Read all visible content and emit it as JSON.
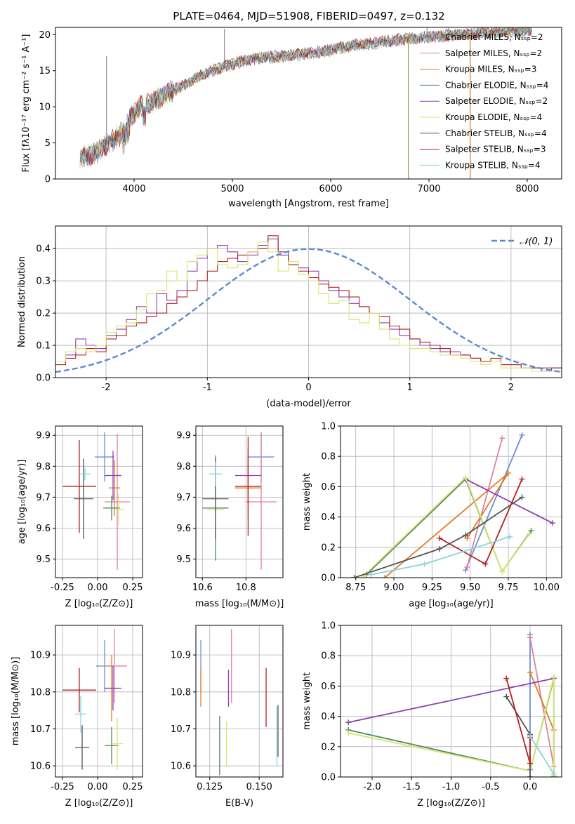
{
  "chart_data": [
    {
      "type": "line",
      "title": "PLATE=0464, MJD=51908, FIBERID=0497, z=0.132",
      "xlabel": "wavelength [Angstrom, rest frame]",
      "ylabel": "Flux [fλ10⁻¹⁷ erg cm⁻² s⁻¹ A⁻¹]",
      "xlim": [
        3200,
        8350
      ],
      "ylim": [
        0,
        21
      ],
      "xticks": [
        4000,
        5000,
        6000,
        7000,
        8000
      ],
      "yticks": [
        0,
        5,
        10,
        15,
        20
      ],
      "legend_position": "top-right",
      "series": [
        {
          "name": "Chabrier MILES, Nₛₛₚ=2",
          "color": "#6b8fd6"
        },
        {
          "name": "Salpeter MILES, Nₛₛₚ=2",
          "color": "#e0829e"
        },
        {
          "name": "Kroupa MILES, Nₛₛₚ=3",
          "color": "#e07b28"
        },
        {
          "name": "Chabrier ELODIE, Nₛₛₚ=4",
          "color": "#4f8a5e"
        },
        {
          "name": "Salpeter ELODIE, Nₛₛₚ=2",
          "color": "#8e3fb3"
        },
        {
          "name": "Kroupa ELODIE, Nₛₛₚ=4",
          "color": "#d5e76e"
        },
        {
          "name": "Chabrier STELIB, Nₛₛₚ=4",
          "color": "#555555"
        },
        {
          "name": "Salpeter STELIB, Nₛₛₚ=3",
          "color": "#b22222"
        },
        {
          "name": "Kroupa STELIB, Nₛₛₚ=4",
          "color": "#86d4e0"
        }
      ],
      "spectrum_knots": {
        "x": [
          3450,
          3600,
          3700,
          3850,
          3950,
          4050,
          4150,
          4300,
          4500,
          4700,
          4900,
          5100,
          5300,
          5500,
          5700,
          5900,
          6100,
          6300,
          6500,
          6700,
          6900,
          7100,
          7300,
          7500,
          7700,
          7900,
          8050
        ],
        "y": [
          3.0,
          3.5,
          4.5,
          6.0,
          8.5,
          10.0,
          10.5,
          11.5,
          13.0,
          14.5,
          15.5,
          16.3,
          16.8,
          17.0,
          17.3,
          17.6,
          18.2,
          18.6,
          18.9,
          19.3,
          19.5,
          19.8,
          20.0,
          20.2,
          20.4,
          20.5,
          20.6
        ]
      },
      "spikes": [
        {
          "x": 3720,
          "y": 17.0,
          "color": "#555555"
        },
        {
          "x": 4920,
          "y": 20.8,
          "color": "#555555"
        },
        {
          "x": 6980,
          "y": 21.0,
          "color": "#555555"
        },
        {
          "x": 7200,
          "y": 20.9,
          "color": "#555555"
        }
      ],
      "dropouts": [
        {
          "x": 6790,
          "color": "#9e9c3a"
        },
        {
          "x": 7420,
          "color": "#e07b28"
        }
      ]
    },
    {
      "type": "histogram",
      "xlabel": "(data-model)/error",
      "ylabel": "Normed distribution",
      "xlim": [
        -2.5,
        2.5
      ],
      "ylim": [
        0,
        0.47
      ],
      "xticks": [
        -2,
        -1,
        0,
        1,
        2
      ],
      "yticks": [
        0.0,
        0.1,
        0.2,
        0.3,
        0.4
      ],
      "grid": true,
      "legend": {
        "label": "𝒩(0, 1)",
        "color": "#5b8bd0",
        "position": "top-right"
      },
      "series": [
        {
          "color": "#8e3fb3",
          "values": [
            0.05,
            0.07,
            0.12,
            0.1,
            0.09,
            0.13,
            0.15,
            0.18,
            0.22,
            0.2,
            0.26,
            0.24,
            0.27,
            0.33,
            0.37,
            0.4,
            0.41,
            0.39,
            0.36,
            0.38,
            0.41,
            0.43,
            0.38,
            0.35,
            0.34,
            0.33,
            0.3,
            0.27,
            0.25,
            0.23,
            0.22,
            0.2,
            0.17,
            0.15,
            0.13,
            0.12,
            0.1,
            0.09,
            0.08,
            0.08,
            0.07,
            0.06,
            0.05,
            0.05,
            0.04,
            0.04,
            0.03,
            0.03,
            0.03,
            0.03
          ]
        },
        {
          "color": "#b22222",
          "values": [
            0.04,
            0.06,
            0.07,
            0.09,
            0.08,
            0.12,
            0.13,
            0.16,
            0.17,
            0.19,
            0.2,
            0.23,
            0.25,
            0.27,
            0.3,
            0.33,
            0.36,
            0.37,
            0.38,
            0.39,
            0.4,
            0.44,
            0.39,
            0.35,
            0.33,
            0.31,
            0.29,
            0.28,
            0.27,
            0.25,
            0.22,
            0.2,
            0.19,
            0.16,
            0.15,
            0.12,
            0.11,
            0.1,
            0.09,
            0.07,
            0.07,
            0.06,
            0.05,
            0.06,
            0.04,
            0.04,
            0.03,
            0.03,
            0.02,
            0.03
          ]
        },
        {
          "color": "#d5e76e",
          "values": [
            0.05,
            0.08,
            0.09,
            0.08,
            0.1,
            0.14,
            0.16,
            0.17,
            0.21,
            0.26,
            0.27,
            0.33,
            0.3,
            0.36,
            0.38,
            0.4,
            0.35,
            0.34,
            0.35,
            0.39,
            0.42,
            0.39,
            0.33,
            0.36,
            0.32,
            0.3,
            0.26,
            0.23,
            0.24,
            0.18,
            0.17,
            0.2,
            0.15,
            0.12,
            0.1,
            0.09,
            0.09,
            0.08,
            0.07,
            0.07,
            0.06,
            0.05,
            0.04,
            0.05,
            0.03,
            0.03,
            0.03,
            0.02,
            0.02,
            0.02
          ]
        }
      ],
      "normal_curve": {
        "mean": 0,
        "sd": 1
      }
    },
    {
      "type": "scatter",
      "xlabel": "Z [log₁₀(Z/Z⊙)]",
      "ylabel": "age  [log₁₀(age/yr)]",
      "xlim": [
        -0.3,
        0.32
      ],
      "ylim": [
        9.44,
        9.93
      ],
      "xticks": [
        -0.25,
        0.0,
        0.25
      ],
      "yticks": [
        9.5,
        9.6,
        9.7,
        9.8,
        9.9
      ],
      "grid": true,
      "points": [
        {
          "x": 0.05,
          "y": 9.83,
          "xerr": 0.07,
          "yerr": 0.08,
          "color": "#6b8fd6"
        },
        {
          "x": 0.14,
          "y": 9.685,
          "xerr": 0.09,
          "yerr": 0.22,
          "color": "#e0829e"
        },
        {
          "x": 0.12,
          "y": 9.73,
          "xerr": 0.04,
          "yerr": 0.09,
          "color": "#e07b28"
        },
        {
          "x": 0.1,
          "y": 9.665,
          "xerr": 0.06,
          "yerr": 0.04,
          "color": "#4f8a5e"
        },
        {
          "x": 0.11,
          "y": 9.77,
          "xerr": 0.06,
          "yerr": 0.08,
          "color": "#8e3fb3"
        },
        {
          "x": 0.15,
          "y": 9.66,
          "xerr": 0.04,
          "yerr": 0.05,
          "color": "#d5e76e"
        },
        {
          "x": -0.1,
          "y": 9.695,
          "xerr": 0.07,
          "yerr": 0.13,
          "color": "#555555"
        },
        {
          "x": -0.13,
          "y": 9.735,
          "xerr": 0.12,
          "yerr": 0.15,
          "color": "#b22222"
        },
        {
          "x": -0.09,
          "y": 9.775,
          "xerr": 0.04,
          "yerr": 0.02,
          "color": "#86d4e0"
        }
      ]
    },
    {
      "type": "scatter",
      "xlabel": "mass [log₁₀(M/M⊙)]",
      "xlim": [
        10.57,
        10.97
      ],
      "ylim": [
        9.44,
        9.93
      ],
      "xticks": [
        10.6,
        10.8
      ],
      "yticks": [
        9.5,
        9.6,
        9.7,
        9.8,
        9.9
      ],
      "grid": true,
      "points": [
        {
          "x": 10.87,
          "y": 9.83,
          "xerr": 0.06,
          "yerr": 0.08,
          "color": "#6b8fd6"
        },
        {
          "x": 10.87,
          "y": 9.685,
          "xerr": 0.07,
          "yerr": 0.22,
          "color": "#e0829e"
        },
        {
          "x": 10.81,
          "y": 9.73,
          "xerr": 0.06,
          "yerr": 0.1,
          "color": "#e07b28"
        },
        {
          "x": 10.66,
          "y": 9.665,
          "xerr": 0.06,
          "yerr": 0.17,
          "color": "#4f8a5e"
        },
        {
          "x": 10.81,
          "y": 9.77,
          "xerr": 0.06,
          "yerr": 0.09,
          "color": "#8e3fb3"
        },
        {
          "x": 10.66,
          "y": 9.66,
          "xerr": 0.04,
          "yerr": 0.07,
          "color": "#d5e76e"
        },
        {
          "x": 10.66,
          "y": 9.695,
          "xerr": 0.06,
          "yerr": 0.13,
          "color": "#555555"
        },
        {
          "x": 10.81,
          "y": 9.735,
          "xerr": 0.06,
          "yerr": 0.16,
          "color": "#b22222"
        },
        {
          "x": 10.66,
          "y": 9.775,
          "xerr": 0.03,
          "yerr": 0.04,
          "color": "#86d4e0"
        }
      ]
    },
    {
      "type": "line",
      "xlabel": "age  [log₁₀(age/yr)]",
      "ylabel": "mass weight",
      "xlim": [
        8.65,
        10.1
      ],
      "ylim": [
        0,
        1.0
      ],
      "xticks": [
        8.75,
        9.0,
        9.25,
        9.5,
        9.75,
        10.0
      ],
      "yticks": [
        0.0,
        0.2,
        0.4,
        0.6,
        0.8,
        1.0
      ],
      "grid": true,
      "series": [
        {
          "color": "#6b8fd6",
          "x": [
            9.47,
            9.84
          ],
          "y": [
            0.05,
            0.94
          ]
        },
        {
          "color": "#e0829e",
          "x": [
            9.48,
            9.71
          ],
          "y": [
            0.07,
            0.92
          ]
        },
        {
          "color": "#e07b28",
          "x": [
            8.94,
            9.75,
            9.48
          ],
          "y": [
            0.0,
            0.69,
            0.26
          ]
        },
        {
          "color": "#4f8a5e",
          "x": [
            8.82,
            9.47,
            9.71,
            9.9
          ],
          "y": [
            0.02,
            0.65,
            0.04,
            0.31
          ]
        },
        {
          "color": "#8e3fb3",
          "x": [
            9.47,
            10.04
          ],
          "y": [
            0.65,
            0.36
          ]
        },
        {
          "color": "#d5e76e",
          "x": [
            8.8,
            9.47,
            9.71,
            9.89
          ],
          "y": [
            0.01,
            0.66,
            0.04,
            0.29
          ]
        },
        {
          "color": "#555555",
          "x": [
            8.74,
            9.3,
            9.47,
            9.84
          ],
          "y": [
            0.0,
            0.19,
            0.28,
            0.53
          ]
        },
        {
          "color": "#b22222",
          "x": [
            9.3,
            9.6,
            9.84
          ],
          "y": [
            0.26,
            0.09,
            0.65
          ]
        },
        {
          "color": "#86d4e0",
          "x": [
            8.85,
            9.2,
            9.76
          ],
          "y": [
            0.02,
            0.09,
            0.27
          ]
        }
      ]
    },
    {
      "type": "scatter",
      "xlabel": "Z [log₁₀(Z/Z⊙)]",
      "ylabel": "mass [log₁₀(M/M⊙)]",
      "xlim": [
        -0.3,
        0.32
      ],
      "ylim": [
        10.57,
        10.98
      ],
      "xticks": [
        -0.25,
        0.0,
        0.25
      ],
      "yticks": [
        10.6,
        10.7,
        10.8,
        10.9
      ],
      "grid": true,
      "points": [
        {
          "x": 0.05,
          "y": 10.87,
          "xerr": 0.06,
          "yerr": 0.07,
          "color": "#6b8fd6"
        },
        {
          "x": 0.12,
          "y": 10.87,
          "xerr": 0.09,
          "yerr": 0.1,
          "color": "#e0829e"
        },
        {
          "x": 0.1,
          "y": 10.81,
          "xerr": 0.04,
          "yerr": 0.09,
          "color": "#e07b28"
        },
        {
          "x": 0.1,
          "y": 10.655,
          "xerr": 0.05,
          "yerr": 0.05,
          "color": "#4f8a5e"
        },
        {
          "x": 0.11,
          "y": 10.81,
          "xerr": 0.06,
          "yerr": 0.06,
          "color": "#8e3fb3"
        },
        {
          "x": 0.14,
          "y": 10.66,
          "xerr": 0.04,
          "yerr": 0.07,
          "color": "#d5e76e"
        },
        {
          "x": -0.11,
          "y": 10.65,
          "xerr": 0.05,
          "yerr": 0.06,
          "color": "#555555"
        },
        {
          "x": -0.13,
          "y": 10.805,
          "xerr": 0.12,
          "yerr": 0.06,
          "color": "#b22222"
        },
        {
          "x": -0.12,
          "y": 10.74,
          "xerr": 0.04,
          "yerr": 0.05,
          "color": "#86d4e0"
        }
      ]
    },
    {
      "type": "scatter",
      "xlabel": "E(B-V)",
      "xlim": [
        0.118,
        0.162
      ],
      "ylim": [
        10.57,
        10.98
      ],
      "xticks": [
        0.125,
        0.15
      ],
      "yticks": [
        10.6,
        10.7,
        10.8,
        10.9
      ],
      "grid": true,
      "points": [
        {
          "x": 0.1205,
          "y": 10.87,
          "yerr": 0.07,
          "color": "#6b8fd6"
        },
        {
          "x": 0.136,
          "y": 10.87,
          "yerr": 0.1,
          "color": "#e0829e"
        },
        {
          "x": 0.1205,
          "y": 10.81,
          "yerr": 0.05,
          "color": "#e07b28"
        },
        {
          "x": 0.13,
          "y": 10.655,
          "yerr": 0.08,
          "color": "#4f8a5e"
        },
        {
          "x": 0.1345,
          "y": 10.81,
          "yerr": 0.05,
          "color": "#8e3fb3"
        },
        {
          "x": 0.1335,
          "y": 10.66,
          "yerr": 0.06,
          "color": "#d5e76e"
        },
        {
          "x": 0.1595,
          "y": 10.695,
          "yerr": 0.07,
          "color": "#555555"
        },
        {
          "x": 0.1535,
          "y": 10.785,
          "yerr": 0.08,
          "color": "#b22222"
        },
        {
          "x": 0.159,
          "y": 10.68,
          "yerr": 0.08,
          "color": "#86d4e0"
        }
      ]
    },
    {
      "type": "line",
      "xlabel": "Z [log₁₀(Z/Z⊙)]",
      "ylabel": "mass weight",
      "xlim": [
        -2.4,
        0.4
      ],
      "ylim": [
        0,
        1.0
      ],
      "xticks": [
        -2.0,
        -1.5,
        -1.0,
        -0.5,
        0.0
      ],
      "yticks": [
        0.0,
        0.2,
        0.4,
        0.6,
        0.8,
        1.0
      ],
      "grid": true,
      "series": [
        {
          "color": "#6b8fd6",
          "x": [
            0.0,
            0.0
          ],
          "y": [
            0.94,
            0.05
          ]
        },
        {
          "color": "#e0829e",
          "x": [
            0.0,
            0.3
          ],
          "y": [
            0.92,
            0.07
          ]
        },
        {
          "color": "#e07b28",
          "x": [
            0.0,
            0.3,
            0.3
          ],
          "y": [
            0.69,
            0.31,
            0.0
          ]
        },
        {
          "color": "#4f8a5e",
          "x": [
            -2.3,
            0.0,
            0.3,
            0.3
          ],
          "y": [
            0.31,
            0.04,
            0.65,
            0.0
          ]
        },
        {
          "color": "#8e3fb3",
          "x": [
            -2.3,
            0.3
          ],
          "y": [
            0.36,
            0.65
          ]
        },
        {
          "color": "#d5e76e",
          "x": [
            -2.3,
            0.0,
            0.3,
            0.3
          ],
          "y": [
            0.29,
            0.04,
            0.66,
            0.01
          ]
        },
        {
          "color": "#555555",
          "x": [
            -0.3,
            0.0,
            0.0
          ],
          "y": [
            0.53,
            0.28,
            0.0
          ]
        },
        {
          "color": "#b22222",
          "x": [
            -0.3,
            0.0,
            0.0
          ],
          "y": [
            0.65,
            0.09,
            0.26
          ]
        },
        {
          "color": "#86d4e0",
          "x": [
            0.0,
            0.3
          ],
          "y": [
            0.27,
            0.02
          ]
        }
      ]
    }
  ]
}
